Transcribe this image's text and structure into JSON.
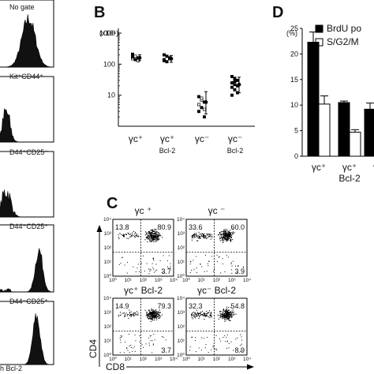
{
  "panels": {
    "B_letter": "B",
    "C_letter": "C",
    "D_letter": "D"
  },
  "panel_A": {
    "hist_labels": [
      "No gate",
      "Kit⁺CD44⁺",
      "D44⁺CD25⁻",
      "D44⁺CD25⁺",
      "D44⁻CD25⁺"
    ],
    "footer": "h Bcl-2"
  },
  "panel_C": {
    "ylabel": "CD4",
    "xlabel": "CD8",
    "plots": [
      {
        "title": "γc ⁺",
        "ul": "13.8",
        "ur": "80.9",
        "lr": "3.7"
      },
      {
        "title": "γc ⁻",
        "ul": "33.6",
        "ur": "60.0",
        "lr": "3.9"
      },
      {
        "title": "γc⁺ Bcl-2",
        "ul": "14.9",
        "ur": "79.3",
        "lr": "3.7"
      },
      {
        "title": "γc⁻ Bcl-2",
        "ul": "32.3",
        "ur": "54.8",
        "lr": "8.9"
      }
    ],
    "tick_labels": [
      "10⁰",
      "10¹",
      "10²",
      "10³",
      "10⁴"
    ]
  },
  "chart_data": [
    {
      "type": "scatter",
      "panel": "B",
      "ylabel": "(x10⁶)",
      "yscale": "log",
      "ylim": [
        1,
        1000
      ],
      "yticks": [
        "1",
        "10",
        "100",
        "1000"
      ],
      "categories": [
        "γc⁺",
        "γc⁺ Bcl-2",
        "γc⁻",
        "γc⁻ Bcl-2"
      ],
      "category_lines": [
        [
          "γc⁺",
          ""
        ],
        [
          "γc⁺",
          "Bcl-2"
        ],
        [
          "γc⁻",
          ""
        ],
        [
          "γc⁻",
          "Bcl-2"
        ]
      ],
      "series": [
        {
          "values": [
            [
              210,
              180,
              160,
              150,
              140,
              130,
              170
            ],
            [
              200,
              180,
              160,
              140,
              120,
              150,
              130
            ],
            [
              9,
              7,
              6,
              5,
              4,
              3.5,
              3,
              8,
              2
            ],
            [
              40,
              35,
              30,
              25,
              22,
              20,
              18,
              15,
              12,
              10,
              28
            ]
          ]
        }
      ],
      "means": [
        160,
        150,
        6,
        22
      ],
      "errors": [
        [
          130,
          200
        ],
        [
          115,
          190
        ],
        [
          2.5,
          13
        ],
        [
          12,
          38
        ]
      ]
    },
    {
      "type": "bar",
      "panel": "D",
      "ylabel": "(%)",
      "ylim": [
        0,
        25
      ],
      "yticks": [
        "0",
        "5",
        "10",
        "15",
        "20",
        "25"
      ],
      "legend": [
        "BrdU po",
        "S/G2/M"
      ],
      "categories": [
        "γc⁺",
        "γc⁺ Bcl-2",
        "γc⁻"
      ],
      "category_lines": [
        [
          "γc⁺",
          ""
        ],
        [
          "γc⁺",
          "Bcl-2"
        ],
        [
          "γ",
          ""
        ]
      ],
      "series": [
        {
          "name": "BrdU po",
          "values": [
            22.3,
            10.5,
            9.2
          ],
          "errors": [
            2.0,
            0.3,
            1.2
          ],
          "color": "#000000"
        },
        {
          "name": "S/G2/M",
          "values": [
            10.2,
            4.7,
            0
          ],
          "errors": [
            1.6,
            0.5,
            0
          ],
          "color": "#ffffff"
        }
      ]
    }
  ]
}
